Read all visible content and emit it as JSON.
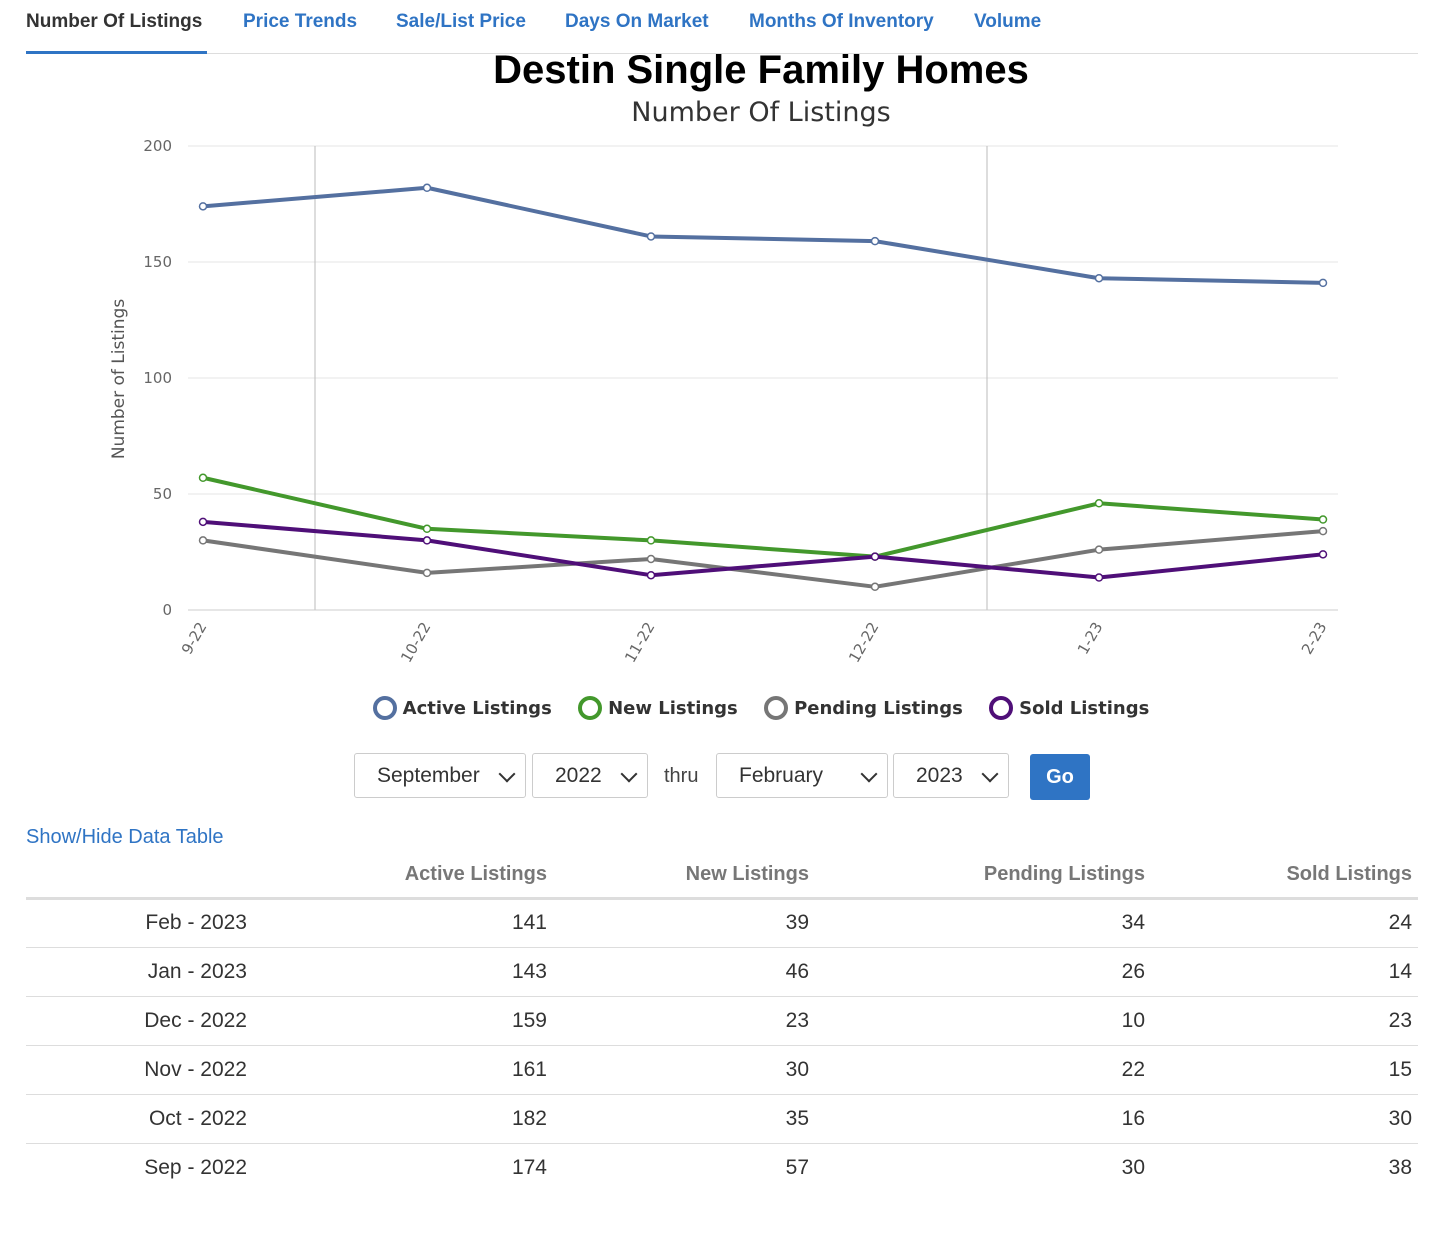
{
  "tabs": [
    {
      "label": "Number Of Listings",
      "active": true
    },
    {
      "label": "Price Trends"
    },
    {
      "label": "Sale/List Price"
    },
    {
      "label": "Days On Market"
    },
    {
      "label": "Months Of Inventory"
    },
    {
      "label": "Volume"
    }
  ],
  "chart_data": {
    "type": "line",
    "title": "Destin Single Family Homes",
    "subtitle": "Number Of Listings",
    "xlabel": "",
    "ylabel": "Number of Listings",
    "categories": [
      "9-22",
      "10-22",
      "11-22",
      "12-22",
      "1-23",
      "2-23"
    ],
    "ylim": [
      0,
      200
    ],
    "yticks": [
      "0",
      "50",
      "100",
      "150",
      "200"
    ],
    "grid": true,
    "legend": "bottom",
    "series": [
      {
        "name": "Active Listings",
        "color": "#5470a0",
        "values": [
          174,
          182,
          161,
          159,
          143,
          141
        ]
      },
      {
        "name": "New Listings",
        "color": "#43982c",
        "values": [
          57,
          35,
          30,
          23,
          46,
          39
        ]
      },
      {
        "name": "Pending Listings",
        "color": "#767676",
        "values": [
          30,
          16,
          22,
          10,
          26,
          34
        ]
      },
      {
        "name": "Sold Listings",
        "color": "#4f0f78",
        "values": [
          38,
          30,
          15,
          23,
          14,
          24
        ]
      }
    ]
  },
  "controls": {
    "start_month": "September",
    "start_year": "2022",
    "thru_label": "thru",
    "end_month": "February",
    "end_year": "2023",
    "go_label": "Go"
  },
  "table_toggle_label": "Show/Hide Data Table",
  "table": {
    "headers": [
      "",
      "Active Listings",
      "New Listings",
      "Pending Listings",
      "Sold Listings"
    ],
    "rows": [
      [
        "Feb - 2023",
        "141",
        "39",
        "34",
        "24"
      ],
      [
        "Jan - 2023",
        "143",
        "46",
        "26",
        "14"
      ],
      [
        "Dec - 2022",
        "159",
        "23",
        "10",
        "23"
      ],
      [
        "Nov - 2022",
        "161",
        "30",
        "22",
        "15"
      ],
      [
        "Oct - 2022",
        "182",
        "35",
        "16",
        "30"
      ],
      [
        "Sep - 2022",
        "174",
        "57",
        "30",
        "38"
      ]
    ]
  }
}
